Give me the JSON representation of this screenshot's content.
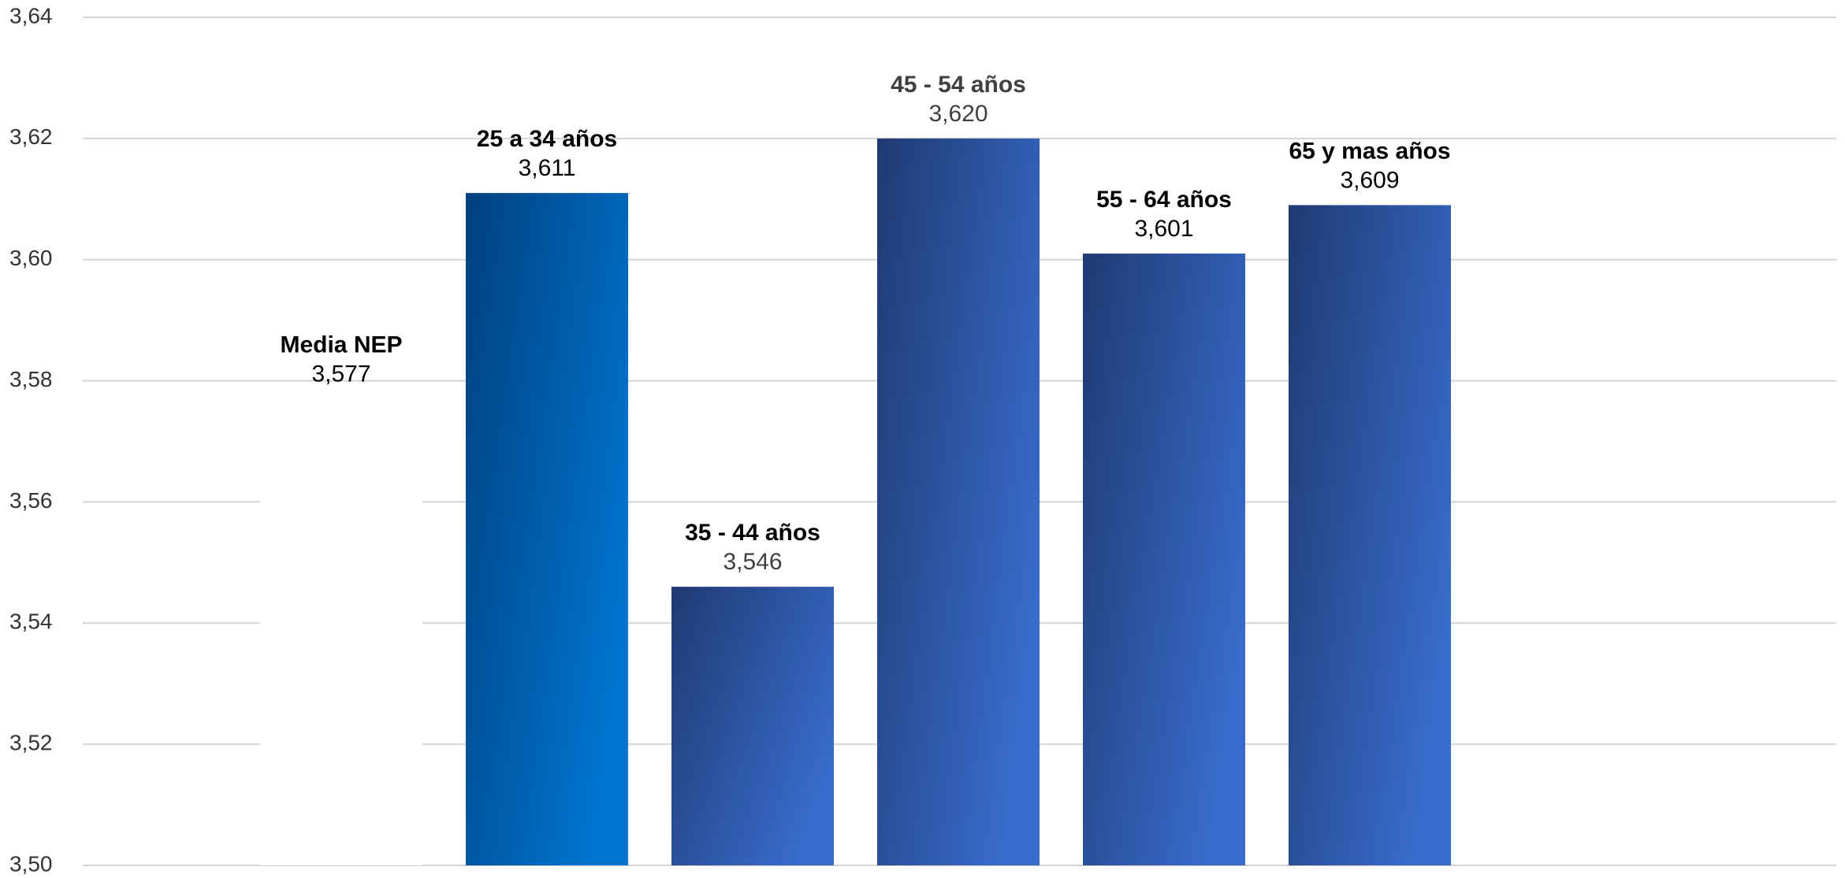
{
  "chart_data": {
    "type": "bar",
    "categories": [
      "Media NEP",
      "25 a 34 años",
      "35 - 44 años",
      "45 - 54 años",
      "55 - 64 años",
      "65 y mas años"
    ],
    "values": [
      3.577,
      3.611,
      3.546,
      3.62,
      3.601,
      3.609
    ],
    "value_labels": [
      "3,577",
      "3,611",
      "3,546",
      "3,620",
      "3,601",
      "3,609"
    ],
    "gradients": [
      [
        "#ffffff",
        "#ffffff"
      ],
      [
        "#00407e",
        "#0074cf"
      ],
      [
        "#1f3a72",
        "#386bcb"
      ],
      [
        "#1f3a72",
        "#386bcb"
      ],
      [
        "#1f3a72",
        "#386bcb"
      ],
      [
        "#1f3a72",
        "#386bcb"
      ]
    ],
    "label_colors": [
      "#000000",
      "#000000",
      "#000000",
      "#404040",
      "#000000",
      "#000000"
    ],
    "value_label_colors": [
      "#000000",
      "#000000",
      "#404040",
      "#404040",
      "#000000",
      "#000000"
    ],
    "ylim": [
      3.5,
      3.64
    ],
    "yticks": [
      {
        "value": 3.5,
        "label": "3,50"
      },
      {
        "value": 3.52,
        "label": "3,52"
      },
      {
        "value": 3.54,
        "label": "3,54"
      },
      {
        "value": 3.56,
        "label": "3,56"
      },
      {
        "value": 3.58,
        "label": "3,58"
      },
      {
        "value": 3.6,
        "label": "3,60"
      },
      {
        "value": 3.62,
        "label": "3,62"
      },
      {
        "value": 3.64,
        "label": "3,64"
      }
    ],
    "grid": true
  }
}
